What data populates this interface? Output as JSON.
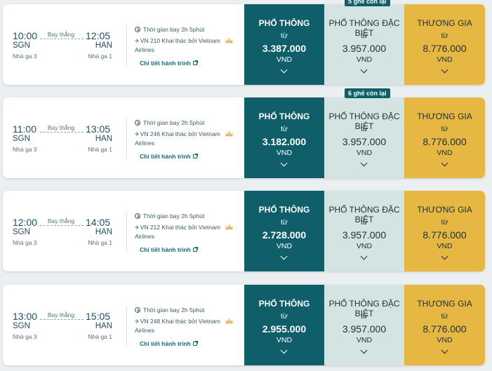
{
  "top_badge": "5 ghế còn lại",
  "flights": [
    {
      "dep_time": "10:00",
      "dep_code": "SGN",
      "dep_terminal": "Nhà ga 3",
      "arr_time": "12:05",
      "arr_code": "HAN",
      "arr_terminal": "Nhà ga 1",
      "flight_type": "Bay thẳng",
      "duration": "Thời gian bay 2h 5phút",
      "flight_info": "VN 210 Khai thác bởi Vietnam Airlines",
      "detail_link": "Chi tiết hành trình",
      "seat_badge": "",
      "fares": [
        {
          "name": "PHỔ THÔNG",
          "from": "từ",
          "price": "3.387.000",
          "currency": "VND"
        },
        {
          "name": "PHỔ THÔNG ĐẶC BIỆT",
          "from": "từ",
          "price": "3.957.000",
          "currency": "VND"
        },
        {
          "name": "THƯƠNG GIA",
          "from": "từ",
          "price": "8.776.000",
          "currency": "VND"
        }
      ]
    },
    {
      "dep_time": "11:00",
      "dep_code": "SGN",
      "dep_terminal": "Nhà ga 3",
      "arr_time": "13:05",
      "arr_code": "HAN",
      "arr_terminal": "Nhà ga 1",
      "flight_type": "Bay thẳng",
      "duration": "Thời gian bay 2h 5phút",
      "flight_info": "VN 246 Khai thác bởi Vietnam Airlines",
      "detail_link": "Chi tiết hành trình",
      "seat_badge": "6 ghế còn lại",
      "fares": [
        {
          "name": "PHỔ THÔNG",
          "from": "từ",
          "price": "3.182.000",
          "currency": "VND"
        },
        {
          "name": "PHỔ THÔNG ĐẶC BIỆT",
          "from": "từ",
          "price": "3.957.000",
          "currency": "VND"
        },
        {
          "name": "THƯƠNG GIA",
          "from": "từ",
          "price": "8.776.000",
          "currency": "VND"
        }
      ]
    },
    {
      "dep_time": "12:00",
      "dep_code": "SGN",
      "dep_terminal": "Nhà ga 3",
      "arr_time": "14:05",
      "arr_code": "HAN",
      "arr_terminal": "Nhà ga 1",
      "flight_type": "Bay thẳng",
      "duration": "Thời gian bay 2h 5phút",
      "flight_info": "VN 212 Khai thác bởi Vietnam Airlines",
      "detail_link": "Chi tiết hành trình",
      "seat_badge": "",
      "fares": [
        {
          "name": "PHỔ THÔNG",
          "from": "từ",
          "price": "2.728.000",
          "currency": "VND"
        },
        {
          "name": "PHỔ THÔNG ĐẶC BIỆT",
          "from": "từ",
          "price": "3.957.000",
          "currency": "VND"
        },
        {
          "name": "THƯƠNG GIA",
          "from": "từ",
          "price": "8.776.000",
          "currency": "VND"
        }
      ]
    },
    {
      "dep_time": "13:00",
      "dep_code": "SGN",
      "dep_terminal": "Nhà ga 3",
      "arr_time": "15:05",
      "arr_code": "HAN",
      "arr_terminal": "Nhà ga 1",
      "flight_type": "Bay thẳng",
      "duration": "Thời gian bay 2h 5phút",
      "flight_info": "VN 248 Khai thác bởi Vietnam Airlines",
      "detail_link": "Chi tiết hành trình",
      "seat_badge": "",
      "fares": [
        {
          "name": "PHỔ THÔNG",
          "from": "từ",
          "price": "2.955.000",
          "currency": "VND"
        },
        {
          "name": "PHỔ THÔNG ĐẶC BIỆT",
          "from": "từ",
          "price": "3.957.000",
          "currency": "VND"
        },
        {
          "name": "THƯƠNG GIA",
          "from": "từ",
          "price": "8.776.000",
          "currency": "VND"
        }
      ]
    }
  ],
  "colors": {
    "economy": "#0f5f6b",
    "premium_economy": "#d3e4e3",
    "business": "#e6b742",
    "text": "#1f4f63"
  }
}
